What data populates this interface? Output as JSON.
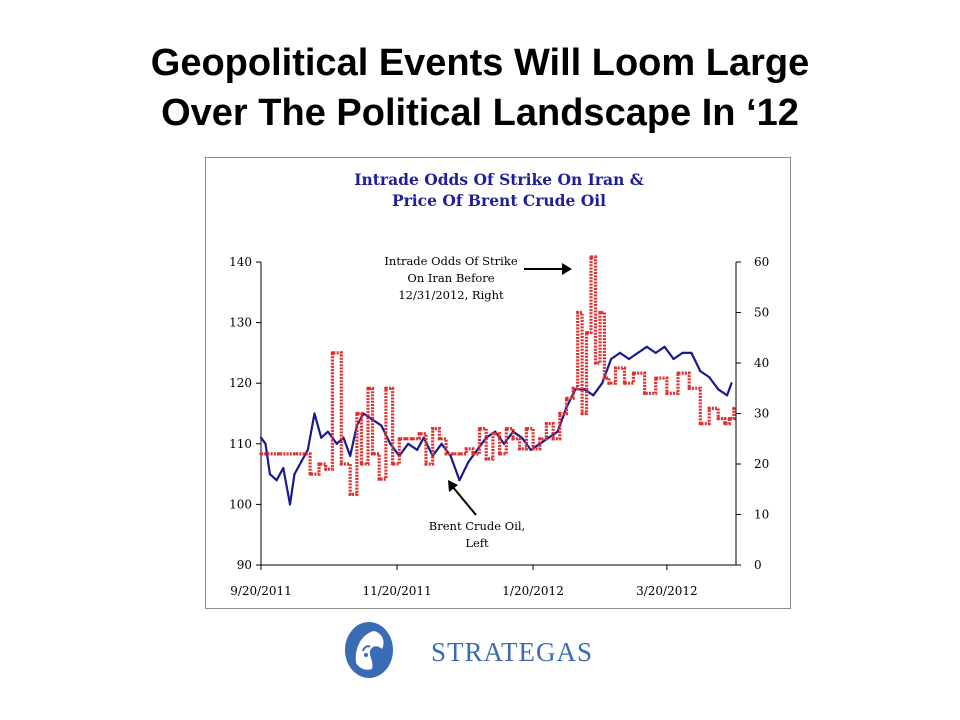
{
  "slide": {
    "title_line1": "Geopolitical Events Will Loom Large",
    "title_line2": "Over The Political Landscape In ‘12"
  },
  "logo": {
    "text": "STRATEGAS",
    "icon": "warrior-helmet-logo",
    "color": "#3a6cb5"
  },
  "chart_data": {
    "type": "line",
    "title": "Intrade Odds Of Strike On Iran & Price Of Brent Crude Oil",
    "title_line1": "Intrade Odds Of Strike On Iran &",
    "title_line2": "Price Of Brent Crude Oil",
    "x_tick_labels": [
      "9/20/2011",
      "11/20/2011",
      "1/20/2012",
      "3/20/2012"
    ],
    "x_range": [
      "2011-09-20",
      "2012-04-20"
    ],
    "left_axis": {
      "ylim": [
        90,
        140
      ],
      "ticks": [
        "90",
        "100",
        "110",
        "120",
        "130",
        "140"
      ]
    },
    "right_axis": {
      "ylim": [
        0,
        60
      ],
      "ticks": [
        "0",
        "10",
        "20",
        "30",
        "40",
        "50",
        "60"
      ]
    },
    "grid": false,
    "series": [
      {
        "name": "Brent Crude Oil, Left",
        "axis": "left",
        "color": "#1a1a8c",
        "x": [
          "2011-09-20",
          "2011-09-22",
          "2011-09-24",
          "2011-09-27",
          "2011-09-30",
          "2011-10-03",
          "2011-10-05",
          "2011-10-08",
          "2011-10-11",
          "2011-10-14",
          "2011-10-17",
          "2011-10-20",
          "2011-10-24",
          "2011-10-27",
          "2011-10-30",
          "2011-11-02",
          "2011-11-05",
          "2011-11-09",
          "2011-11-13",
          "2011-11-17",
          "2011-11-21",
          "2011-11-25",
          "2011-11-29",
          "2011-12-02",
          "2011-12-06",
          "2011-12-10",
          "2011-12-14",
          "2011-12-18",
          "2011-12-22",
          "2011-12-26",
          "2011-12-30",
          "2012-01-03",
          "2012-01-07",
          "2012-01-11",
          "2012-01-15",
          "2012-01-19",
          "2012-01-23",
          "2012-01-27",
          "2012-01-31",
          "2012-02-04",
          "2012-02-08",
          "2012-02-12",
          "2012-02-16",
          "2012-02-20",
          "2012-02-24",
          "2012-02-28",
          "2012-03-03",
          "2012-03-07",
          "2012-03-11",
          "2012-03-15",
          "2012-03-19",
          "2012-03-23",
          "2012-03-27",
          "2012-03-31",
          "2012-04-04",
          "2012-04-08",
          "2012-04-12",
          "2012-04-16",
          "2012-04-18"
        ],
        "values": [
          111,
          110,
          105,
          104,
          106,
          100,
          105,
          107,
          109,
          115,
          111,
          112,
          110,
          111,
          108,
          113,
          115,
          114,
          113,
          110,
          108,
          110,
          109,
          111,
          108,
          110,
          108,
          104,
          107,
          109,
          111,
          112,
          110,
          112,
          111,
          109,
          110,
          111,
          112,
          116,
          119,
          119,
          118,
          120,
          124,
          125,
          124,
          125,
          126,
          125,
          126,
          124,
          125,
          125,
          122,
          121,
          119,
          118,
          120
        ]
      },
      {
        "name": "Intrade Odds Of Strike On Iran Before 12/31/2012, Right",
        "axis": "right",
        "color": "#e03030",
        "x": [
          "2011-09-20",
          "2011-09-28",
          "2011-10-06",
          "2011-10-12",
          "2011-10-16",
          "2011-10-19",
          "2011-10-22",
          "2011-10-26",
          "2011-10-30",
          "2011-11-02",
          "2011-11-04",
          "2011-11-07",
          "2011-11-09",
          "2011-11-12",
          "2011-11-15",
          "2011-11-18",
          "2011-11-21",
          "2011-11-24",
          "2011-11-27",
          "2011-11-30",
          "2011-12-03",
          "2011-12-06",
          "2011-12-09",
          "2011-12-12",
          "2011-12-15",
          "2011-12-18",
          "2011-12-21",
          "2011-12-24",
          "2011-12-27",
          "2011-12-30",
          "2012-01-02",
          "2012-01-05",
          "2012-01-08",
          "2012-01-11",
          "2012-01-14",
          "2012-01-17",
          "2012-01-20",
          "2012-01-23",
          "2012-01-26",
          "2012-01-29",
          "2012-02-01",
          "2012-02-04",
          "2012-02-07",
          "2012-02-09",
          "2012-02-11",
          "2012-02-13",
          "2012-02-15",
          "2012-02-17",
          "2012-02-19",
          "2012-02-21",
          "2012-02-23",
          "2012-02-26",
          "2012-03-01",
          "2012-03-05",
          "2012-03-10",
          "2012-03-15",
          "2012-03-20",
          "2012-03-25",
          "2012-03-30",
          "2012-04-04",
          "2012-04-08",
          "2012-04-12",
          "2012-04-15",
          "2012-04-17",
          "2012-04-19"
        ],
        "values": [
          22,
          22,
          22,
          18,
          20,
          19,
          42,
          20,
          14,
          30,
          20,
          35,
          22,
          17,
          35,
          20,
          25,
          25,
          25,
          26,
          20,
          27,
          25,
          22,
          22,
          22,
          23,
          22,
          27,
          21,
          26,
          22,
          27,
          25,
          23,
          27,
          23,
          25,
          28,
          25,
          30,
          33,
          35,
          50,
          30,
          46,
          61,
          40,
          50,
          37,
          36,
          39,
          36,
          38,
          34,
          37,
          34,
          38,
          35,
          28,
          31,
          29,
          28,
          29,
          31
        ]
      }
    ],
    "annotations": [
      {
        "text_lines": [
          "Intrade Odds Of Strike",
          "On Iran Before",
          "12/31/2012, Right"
        ]
      },
      {
        "text_lines": [
          "Brent Crude Oil,",
          "Left"
        ]
      }
    ]
  }
}
